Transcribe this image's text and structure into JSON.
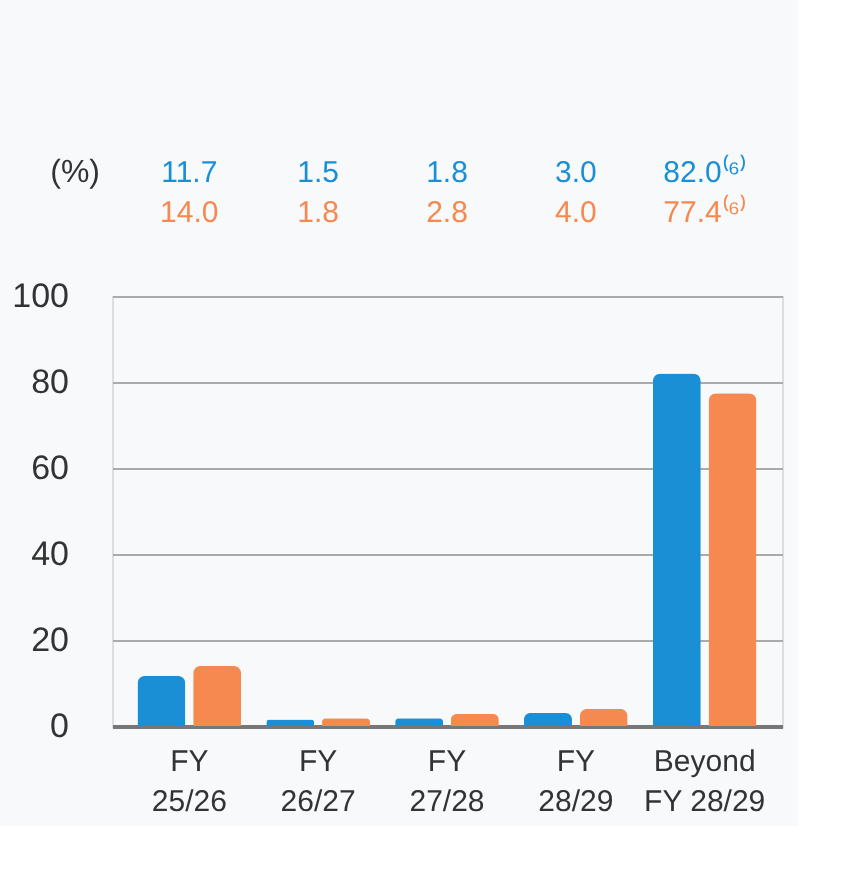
{
  "chart_data": {
    "type": "bar",
    "ylabel": "(%)",
    "categories": [
      "FY\n25/26",
      "FY\n26/27",
      "FY\n27/28",
      "FY\n28/29",
      "Beyond\nFY 28/29"
    ],
    "series": [
      {
        "color": "#1a8fd6",
        "values": [
          11.7,
          1.5,
          1.8,
          3.0,
          82.0
        ],
        "value_labels": [
          "11.7",
          "1.5",
          "1.8",
          "3.0",
          "82.0⁽⁶⁾"
        ]
      },
      {
        "color": "#f5894f",
        "values": [
          14.0,
          1.8,
          2.8,
          4.0,
          77.4
        ],
        "value_labels": [
          "14.0",
          "1.8",
          "2.8",
          "4.0",
          "77.4⁽⁶⁾"
        ]
      }
    ],
    "ylim": [
      0,
      100
    ],
    "yticks": [
      0,
      20,
      40,
      60,
      80,
      100
    ],
    "grid": "y",
    "legend": false
  }
}
